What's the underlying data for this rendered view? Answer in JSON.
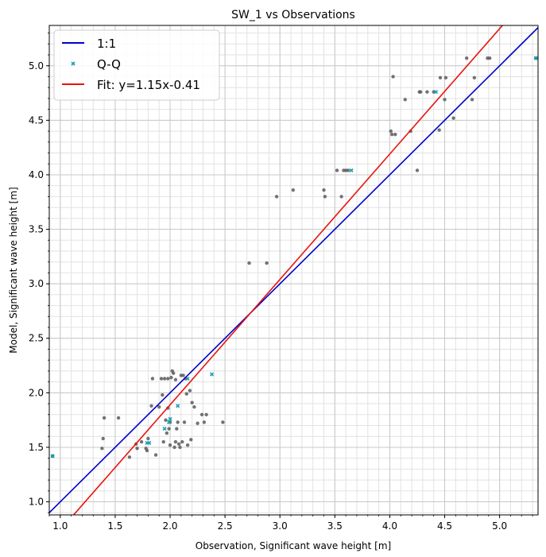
{
  "chart_data": {
    "type": "scatter",
    "title": "SW_1 vs Observations",
    "xlabel": "Observation, Significant wave height [m]",
    "ylabel": "Model, Significant wave height [m]",
    "xlim": [
      0.9,
      5.35
    ],
    "ylim": [
      0.88,
      5.37
    ],
    "xticks": [
      1.0,
      1.5,
      2.0,
      2.5,
      3.0,
      3.5,
      4.0,
      4.5,
      5.0
    ],
    "xtick_labels": [
      "1.0",
      "1.5",
      "2.0",
      "2.5",
      "3.0",
      "3.5",
      "4.0",
      "4.5",
      "5.0"
    ],
    "yticks": [
      1.0,
      1.5,
      2.0,
      2.5,
      3.0,
      3.5,
      4.0,
      4.5,
      5.0
    ],
    "ytick_labels": [
      "1.0",
      "1.5",
      "2.0",
      "2.5",
      "3.0",
      "3.5",
      "4.0",
      "4.5",
      "5.0"
    ],
    "minor_step": 0.1,
    "grid": true,
    "legend_position": "top-left",
    "colors": {
      "identity": "#0000cc",
      "fit": "#e8120c",
      "qq": "#17a0b4",
      "points": "#5a5a5a",
      "grid_major": "#c8c8c8",
      "grid_minor": "#e2e2e2"
    },
    "identity_line": {
      "name": "1:1",
      "slope": 1.0,
      "intercept": 0.0
    },
    "fit_line": {
      "name": "Fit: y=1.15x-0.41",
      "slope": 1.15,
      "intercept": -0.41
    },
    "qq_series": {
      "name": "Q-Q",
      "x": [
        0.93,
        1.79,
        1.81,
        1.95,
        1.99,
        2.0,
        2.07,
        2.16,
        2.38,
        3.65,
        4.42,
        5.33
      ],
      "y": [
        1.42,
        1.54,
        1.54,
        1.67,
        1.73,
        1.76,
        1.88,
        2.13,
        2.17,
        4.04,
        4.76,
        5.07
      ]
    },
    "observations": {
      "x": [
        0.93,
        1.38,
        1.39,
        1.4,
        1.53,
        1.63,
        1.69,
        1.7,
        1.74,
        1.78,
        1.79,
        1.8,
        1.83,
        1.84,
        1.87,
        1.9,
        1.92,
        1.93,
        1.94,
        1.95,
        1.96,
        1.97,
        1.98,
        1.98,
        1.99,
        2.0,
        2.0,
        2.01,
        2.02,
        2.03,
        2.04,
        2.05,
        2.05,
        2.06,
        2.07,
        2.08,
        2.09,
        2.1,
        2.11,
        2.12,
        2.13,
        2.14,
        2.15,
        2.16,
        2.18,
        2.19,
        2.2,
        2.22,
        2.25,
        2.29,
        2.31,
        2.33,
        2.48,
        2.72,
        2.88,
        2.97,
        3.12,
        3.4,
        3.41,
        3.52,
        3.56,
        3.58,
        3.6,
        3.62,
        4.01,
        4.02,
        4.03,
        4.05,
        4.14,
        4.19,
        4.25,
        4.27,
        4.28,
        4.34,
        4.4,
        4.45,
        4.46,
        4.5,
        4.51,
        4.58,
        4.7,
        4.75,
        4.77,
        4.89,
        4.91,
        5.33
      ],
      "y": [
        1.42,
        1.49,
        1.58,
        1.77,
        1.77,
        1.41,
        1.53,
        1.49,
        1.55,
        1.49,
        1.47,
        1.58,
        1.88,
        2.13,
        1.43,
        1.87,
        2.13,
        1.98,
        1.55,
        2.13,
        1.75,
        1.63,
        1.86,
        2.13,
        1.67,
        1.52,
        1.73,
        2.14,
        2.2,
        2.18,
        1.5,
        2.12,
        1.55,
        1.67,
        1.73,
        1.53,
        1.5,
        2.16,
        1.55,
        2.16,
        1.73,
        2.13,
        1.99,
        1.52,
        2.02,
        1.57,
        1.91,
        1.87,
        1.72,
        1.8,
        1.73,
        1.8,
        1.73,
        3.19,
        3.19,
        3.8,
        3.86,
        3.86,
        3.8,
        4.04,
        3.8,
        4.04,
        4.04,
        4.04,
        4.4,
        4.37,
        4.9,
        4.37,
        4.69,
        4.4,
        4.04,
        4.76,
        4.76,
        4.76,
        4.76,
        4.41,
        4.89,
        4.69,
        4.89,
        4.52,
        5.07,
        4.69,
        4.89,
        5.07,
        5.07,
        5.07
      ]
    }
  }
}
